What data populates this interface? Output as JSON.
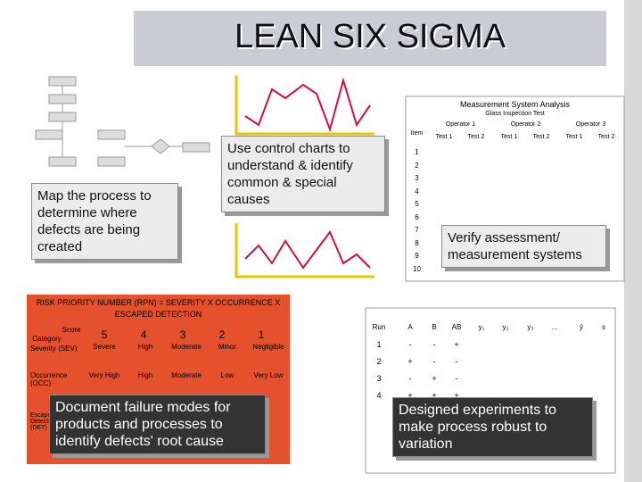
{
  "title": "LEAN SIX SIGMA",
  "callouts": [
    "Map the process to determine where defects are being created",
    "Use control charts to understand & identify common & special causes",
    "Verify assessment/ measurement systems",
    "Document failure modes for products and processes to identify defects' root cause",
    "Designed experiments to make process robust to variation"
  ],
  "msa": {
    "title": "Measurement System Analysis",
    "subtitle": "Glass Inspection Test",
    "item_header": "Item",
    "operators": [
      {
        "name": "Operator 1",
        "tests": [
          "Test 1",
          "Test 2"
        ]
      },
      {
        "name": "Operator 2",
        "tests": [
          "Test 1",
          "Test 2"
        ]
      },
      {
        "name": "Operator 3",
        "tests": [
          "Test 1",
          "Test 2"
        ]
      }
    ],
    "items": [
      "1",
      "2",
      "3",
      "4",
      "5",
      "6",
      "7",
      "8",
      "9",
      "10"
    ]
  },
  "rpn": {
    "title": "RISK PRIORITY NUMBER (RPN) = SEVERITY X OCCURRENCE X ESCAPED DETECTION",
    "score_label": "Score",
    "category_label": "Category",
    "scores": [
      "5",
      "4",
      "3",
      "2",
      "1"
    ],
    "rows": [
      {
        "category": "Severity (SEV)",
        "values": [
          "Severe",
          "High",
          "Moderate",
          "Minor",
          "Negligible"
        ]
      },
      {
        "category": "Occurrence (OCC)",
        "values": [
          "Very High",
          "High",
          "Moderate",
          "Low",
          "Very Low"
        ]
      }
    ],
    "hidden_row": "Escaped Detection (DET)"
  },
  "doe": {
    "headers": [
      "Run",
      "A",
      "B",
      "AB",
      "y₁",
      "y₂",
      "y₃",
      "...",
      "ȳ",
      "s"
    ],
    "rows": [
      [
        "1",
        "-",
        "-",
        "+"
      ],
      [
        "2",
        "+",
        "-",
        "-"
      ],
      [
        "3",
        "-",
        "+",
        "-"
      ],
      [
        "4",
        "+",
        "+",
        "+"
      ]
    ]
  }
}
